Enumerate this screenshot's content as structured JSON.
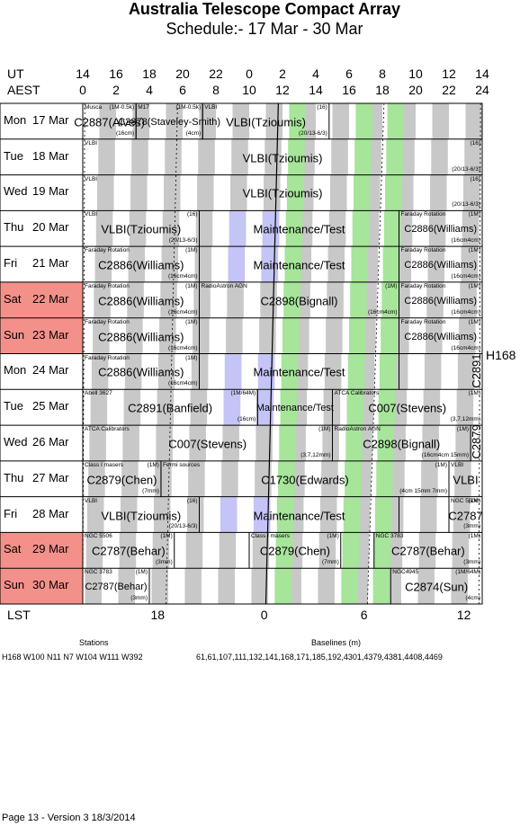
{
  "header": {
    "title": "Australia Telescope Compact Array",
    "subtitle": "Schedule:- 17 Mar - 30 Mar"
  },
  "axes": {
    "ut_label": "UT",
    "aest_label": "AEST",
    "lst_label": "LST",
    "ut_ticks": [
      "14",
      "16",
      "18",
      "20",
      "22",
      "0",
      "2",
      "4",
      "6",
      "8",
      "10",
      "12",
      "14"
    ],
    "aest_ticks": [
      "0",
      "2",
      "4",
      "6",
      "8",
      "10",
      "12",
      "14",
      "16",
      "18",
      "20",
      "22",
      "24"
    ],
    "lst_ticks": [
      "18",
      "0",
      "6",
      "12"
    ]
  },
  "rows": [
    {
      "day": "Mon",
      "date": "17 Mar",
      "weekend": false
    },
    {
      "day": "Tue",
      "date": "18 Mar",
      "weekend": false
    },
    {
      "day": "Wed",
      "date": "19 Mar",
      "weekend": false
    },
    {
      "day": "Thu",
      "date": "20 Mar",
      "weekend": false
    },
    {
      "day": "Fri",
      "date": "21 Mar",
      "weekend": false
    },
    {
      "day": "Sat",
      "date": "22 Mar",
      "weekend": true
    },
    {
      "day": "Sun",
      "date": "23 Mar",
      "weekend": true
    },
    {
      "day": "Mon",
      "date": "24 Mar",
      "weekend": false
    },
    {
      "day": "Tue",
      "date": "25 Mar",
      "weekend": false
    },
    {
      "day": "Wed",
      "date": "26 Mar",
      "weekend": false
    },
    {
      "day": "Thu",
      "date": "27 Mar",
      "weekend": false
    },
    {
      "day": "Fri",
      "date": "28 Mar",
      "weekend": false
    },
    {
      "day": "Sat",
      "date": "29 Mar",
      "weekend": true
    },
    {
      "day": "Sun",
      "date": "30 Mar",
      "weekend": true
    }
  ],
  "blocks": [
    {
      "row": 0,
      "start": 0,
      "end": 3.2,
      "main": "C2887(Alves)",
      "tl": "Musca",
      "tr": "(1M-0.5k)",
      "br": "(16cm)"
    },
    {
      "row": 0,
      "start": 3.2,
      "end": 7.2,
      "main": "C2878(Staveley-Smith)",
      "tl": "M17",
      "tr": "(1M-0.5k)",
      "br": "(4cm)",
      "small_main": true
    },
    {
      "row": 0,
      "start": 7.2,
      "end": 14.8,
      "main": "VLBI(Tzioumis)",
      "tl": "VLBI",
      "tr": "(16)",
      "br": "(20/13-6/3)"
    },
    {
      "row": 1,
      "start": 0,
      "end": 24,
      "main": "VLBI(Tzioumis)",
      "tl": "VLBI",
      "tr": "(16)",
      "br": "(20/13-6/3)"
    },
    {
      "row": 2,
      "start": 0,
      "end": 24,
      "main": "VLBI(Tzioumis)",
      "tl": "VLBI",
      "tr": "(16)",
      "br": "(20/13-6/3)"
    },
    {
      "row": 3,
      "start": 0,
      "end": 7.0,
      "main": "VLBI(Tzioumis)",
      "tl": "VLBI",
      "tr": "(16)",
      "br": "(20/13-6/3)"
    },
    {
      "row": 3,
      "start": 7.0,
      "end": 19.0,
      "main": "Maintenance/Test",
      "maint": true
    },
    {
      "row": 3,
      "start": 19.0,
      "end": 24,
      "main": "C2886(Williams)",
      "tl": "Faraday Rotation",
      "tr": "(1M)",
      "br": "(16cm4cm)",
      "small_main": true
    },
    {
      "row": 4,
      "start": 0,
      "end": 7.0,
      "main": "C2886(Williams)",
      "tl": "Faraday Rotation",
      "tr": "(1M)",
      "br": "(16cm4cm)"
    },
    {
      "row": 4,
      "start": 7.0,
      "end": 19.0,
      "main": "Maintenance/Test",
      "maint": true
    },
    {
      "row": 4,
      "start": 19.0,
      "end": 24,
      "main": "C2886(Williams)",
      "tl": "Faraday Rotation",
      "tr": "(1M)",
      "br": "(16cm4cm)",
      "small_main": true
    },
    {
      "row": 5,
      "start": 0,
      "end": 7.0,
      "main": "C2886(Williams)",
      "tl": "Faraday Rotation",
      "tr": "(1M)",
      "br": "(16cm4cm)"
    },
    {
      "row": 5,
      "start": 7.0,
      "end": 19.0,
      "main": "C2898(Bignall)",
      "tl": "RadioAstron AGN",
      "tr": "(1M)",
      "br": "(16cm4cm)"
    },
    {
      "row": 5,
      "start": 19.0,
      "end": 24,
      "main": "C2886(Williams)",
      "tl": "Faraday Rotation",
      "tr": "(1M)",
      "br": "(16cm4cm)",
      "small_main": true
    },
    {
      "row": 6,
      "start": 0,
      "end": 7.0,
      "main": "C2886(Williams)",
      "tl": "Faraday Rotation",
      "tr": "(1M)",
      "br": "(16cm4cm)"
    },
    {
      "row": 6,
      "start": 19.0,
      "end": 24,
      "main": "C2886(Williams)",
      "tl": "Faraday Rotation",
      "tr": "(1M)",
      "br": "(16cm4cm)",
      "small_main": true
    },
    {
      "row": 7,
      "start": 0,
      "end": 7.0,
      "main": "C2886(Williams)",
      "tl": "Faraday Rotation",
      "tr": "(1M)",
      "br": "(16cm4cm)"
    },
    {
      "row": 7,
      "start": 7.0,
      "end": 19.0,
      "main": "Maintenance/Test",
      "maint": true
    },
    {
      "row": 8,
      "start": 0,
      "end": 10.5,
      "main": "C2891(Banfield)",
      "tl": "Abell 3627",
      "tr": "(1M/64M)",
      "br": "(16cm)"
    },
    {
      "row": 8,
      "start": 10.5,
      "end": 15.0,
      "main": "Maintenance/Test",
      "maint": true,
      "small_main": true
    },
    {
      "row": 8,
      "start": 15.0,
      "end": 24,
      "main": "C007(Stevens)",
      "tl": "ATCA Calibrators",
      "tr": "(1M)",
      "br": "(3,7,12mm)"
    },
    {
      "row": 9,
      "start": 0,
      "end": 15.0,
      "main": "C007(Stevens)",
      "tl": "ATCA Calibrators",
      "tr": "(1M)",
      "br": "(3,7,12mm)"
    },
    {
      "row": 9,
      "start": 15.0,
      "end": 23.3,
      "main": "C2898(Bignall)",
      "tl": "RadioAstron AGN",
      "tr": "(1M)",
      "br": "(16cm4cm 15mm)"
    },
    {
      "row": 10,
      "start": 0,
      "end": 4.7,
      "main": "C2879(Chen)",
      "tl": "Class I masers",
      "tr": "(1M)",
      "br": "(7mm)"
    },
    {
      "row": 10,
      "start": 4.7,
      "end": 22.0,
      "main": "C1730(Edwards)",
      "tl": "Fermi sources",
      "tr": "(1M)",
      "br": "(4cm 15mm 7mm)"
    },
    {
      "row": 10,
      "start": 22.0,
      "end": 24,
      "main": "VLBI",
      "tl": "VLBI"
    },
    {
      "row": 11,
      "start": 0,
      "end": 7.0,
      "main": "VLBI(Tzioumis)",
      "tl": "VLBI",
      "tr": "(16)",
      "br": "(20/13-6/3)"
    },
    {
      "row": 11,
      "start": 7.0,
      "end": 19.0,
      "main": "Maintenance/Test",
      "maint": true
    },
    {
      "row": 11,
      "start": 22.0,
      "end": 24,
      "main": "C2787",
      "tl": "NGC 5506",
      "tr": "(1M)",
      "br": "(3mm)"
    },
    {
      "row": 12,
      "start": 0,
      "end": 5.5,
      "main": "C2787(Behar)",
      "tl": "NGC 5506",
      "tr": "(1M)",
      "br": "(3mm)"
    },
    {
      "row": 12,
      "start": 10.0,
      "end": 15.5,
      "main": "C2879(Chen)",
      "tl": "Class I masers",
      "tr": "(1M)",
      "br": "(7mm)"
    },
    {
      "row": 12,
      "start": 17.5,
      "end": 24,
      "main": "C2787(Behar)",
      "tl": "NGC 3783",
      "tr": "(1M)",
      "br": "(3mm)"
    },
    {
      "row": 13,
      "start": 0,
      "end": 4.0,
      "main": "C2787(Behar)",
      "tl": "NGC 3783",
      "tr": "(1M)",
      "br": "(3mm)",
      "small_main": true
    },
    {
      "row": 13,
      "start": 18.5,
      "end": 24,
      "main": "C2874(Sun)",
      "tl": "NGC4945",
      "tr": "(1M/64M)",
      "br": "(4cm)"
    }
  ],
  "vertical_labels": [
    {
      "text": "C2891",
      "row_start": 7,
      "row_end": 8
    },
    {
      "text": "C2879",
      "row_start": 8,
      "row_end": 10
    }
  ],
  "side_label": "H168",
  "footer": {
    "stations_title": "Stations",
    "stations": "H168  W100 N11 N7 W104 W111 W392",
    "baselines_title": "Baselines (m)",
    "baselines": "61,61,107,111,132,141,168,171,185,192,4301,4379,4381,4408,4469",
    "page": "Page 13 - Version 3  18/3/2014"
  },
  "colors": {
    "grey": "#c8c8c8",
    "green": "#a6e59a",
    "purple": "#c4c4f6",
    "weekend": "#f4908a",
    "grid": "#000000"
  }
}
